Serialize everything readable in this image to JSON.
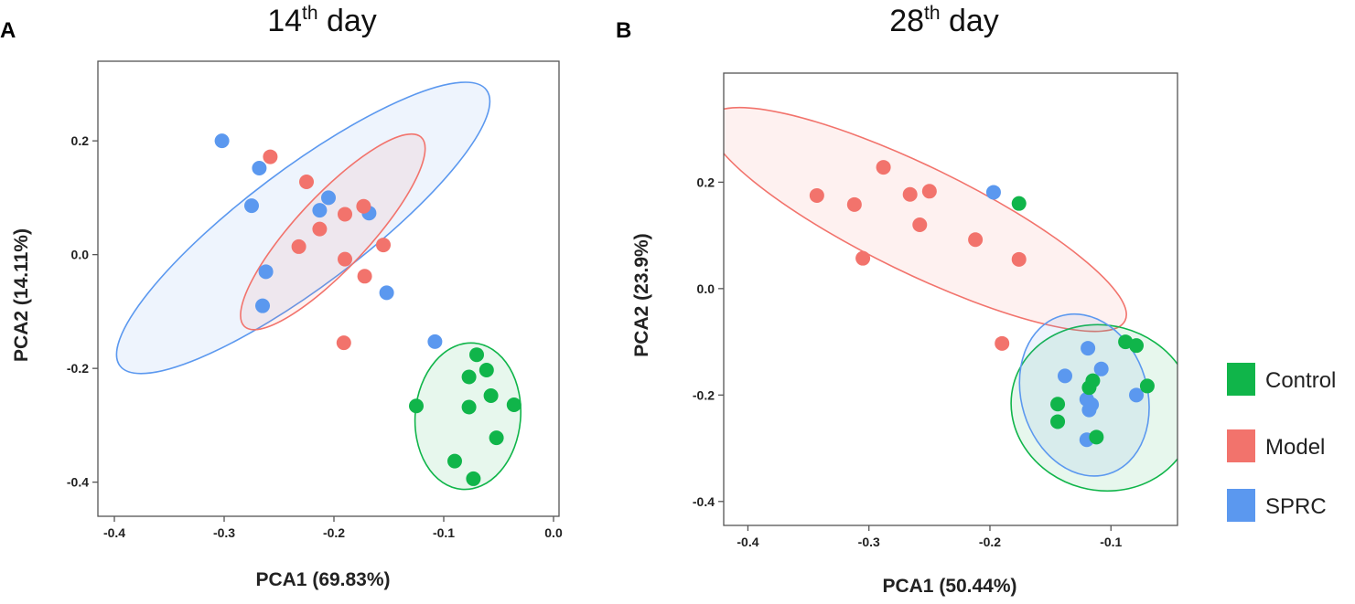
{
  "legend": [
    {
      "label": "Control",
      "color": "#10b54a"
    },
    {
      "label": "Model",
      "color": "#f2736c"
    },
    {
      "label": "SPRC",
      "color": "#5b98ef"
    }
  ],
  "chart_data": [
    {
      "type": "scatter",
      "panel_letter": "A",
      "title_main": "14",
      "title_sup": "th",
      "title_rest": " day",
      "xlabel": "PCA1 (69.83%)",
      "ylabel": "PCA2 (14.11%)",
      "xlim": [
        -0.415,
        0.005
      ],
      "ylim": [
        -0.46,
        0.34
      ],
      "xticks": [
        -0.4,
        -0.3,
        -0.2,
        -0.1,
        0.0
      ],
      "xtick_labels": [
        "-0.4",
        "-0.3",
        "-0.2",
        "-0.1",
        "0.0"
      ],
      "yticks": [
        0.2,
        0.0,
        -0.2,
        -0.4
      ],
      "ytick_labels": [
        "0.2",
        "0.0",
        "-0.2",
        "-0.4"
      ],
      "ellipses": [
        {
          "group": "SPRC",
          "center": [
            -0.228,
            0.047
          ],
          "rx": 0.209,
          "ry": 0.103,
          "angle": -37
        },
        {
          "group": "Model",
          "center": [
            -0.201,
            0.04
          ],
          "rx": 0.118,
          "ry": 0.064,
          "angle": -47
        },
        {
          "group": "Control",
          "center": [
            -0.078,
            -0.284
          ],
          "rx": 0.048,
          "ry": 0.129,
          "angle": 5
        }
      ],
      "series": [
        {
          "name": "SPRC",
          "points": [
            [
              -0.302,
              0.2
            ],
            [
              -0.268,
              0.152
            ],
            [
              -0.275,
              0.086
            ],
            [
              -0.262,
              -0.03
            ],
            [
              -0.265,
              -0.09
            ],
            [
              -0.205,
              0.1
            ],
            [
              -0.213,
              0.078
            ],
            [
              -0.168,
              0.073
            ],
            [
              -0.152,
              -0.067
            ],
            [
              -0.108,
              -0.153
            ]
          ]
        },
        {
          "name": "Model",
          "points": [
            [
              -0.258,
              0.172
            ],
            [
              -0.225,
              0.128
            ],
            [
              -0.173,
              0.085
            ],
            [
              -0.213,
              0.045
            ],
            [
              -0.19,
              0.071
            ],
            [
              -0.155,
              0.017
            ],
            [
              -0.232,
              0.014
            ],
            [
              -0.19,
              -0.008
            ],
            [
              -0.172,
              -0.038
            ],
            [
              -0.191,
              -0.155
            ]
          ]
        },
        {
          "name": "Control",
          "points": [
            [
              -0.07,
              -0.176
            ],
            [
              -0.061,
              -0.203
            ],
            [
              -0.077,
              -0.215
            ],
            [
              -0.125,
              -0.266
            ],
            [
              -0.077,
              -0.268
            ],
            [
              -0.057,
              -0.248
            ],
            [
              -0.036,
              -0.264
            ],
            [
              -0.052,
              -0.322
            ],
            [
              -0.09,
              -0.363
            ],
            [
              -0.073,
              -0.394
            ]
          ]
        }
      ]
    },
    {
      "type": "scatter",
      "panel_letter": "B",
      "title_main": "28",
      "title_sup": "th",
      "title_rest": " day",
      "xlabel": "PCA1 (50.44%)",
      "ylabel": "PCA2 (23.9%)",
      "xlim": [
        -0.42,
        -0.045
      ],
      "ylim": [
        -0.445,
        0.405
      ],
      "xticks": [
        -0.4,
        -0.3,
        -0.2,
        -0.1
      ],
      "xtick_labels": [
        "-0.4",
        "-0.3",
        "-0.2",
        "-0.1"
      ],
      "yticks": [
        0.2,
        0.0,
        -0.2,
        -0.4
      ],
      "ytick_labels": [
        "0.2",
        "0.0",
        "-0.2",
        "-0.4"
      ],
      "ellipses": [
        {
          "group": "Model",
          "center": [
            -0.26,
            0.13
          ],
          "rx": 0.191,
          "ry": 0.1,
          "angle": 26
        },
        {
          "group": "Control",
          "center": [
            -0.107,
            -0.224
          ],
          "rx": 0.076,
          "ry": 0.155,
          "angle": 15
        },
        {
          "group": "SPRC",
          "center": [
            -0.122,
            -0.2
          ],
          "rx": 0.052,
          "ry": 0.155,
          "angle": -17
        }
      ],
      "series": [
        {
          "name": "Model",
          "points": [
            [
              -0.343,
              0.175
            ],
            [
              -0.312,
              0.158
            ],
            [
              -0.288,
              0.228
            ],
            [
              -0.266,
              0.177
            ],
            [
              -0.25,
              0.183
            ],
            [
              -0.258,
              0.12
            ],
            [
              -0.212,
              0.092
            ],
            [
              -0.305,
              0.057
            ],
            [
              -0.176,
              0.055
            ],
            [
              -0.19,
              -0.103
            ]
          ]
        },
        {
          "name": "SPRC",
          "points": [
            [
              -0.197,
              0.181
            ],
            [
              -0.119,
              -0.112
            ],
            [
              -0.108,
              -0.151
            ],
            [
              -0.138,
              -0.164
            ],
            [
              -0.12,
              -0.208
            ],
            [
              -0.116,
              -0.218
            ],
            [
              -0.118,
              -0.228
            ],
            [
              -0.079,
              -0.2
            ],
            [
              -0.12,
              -0.284
            ]
          ]
        },
        {
          "name": "Control",
          "points": [
            [
              -0.176,
              0.16
            ],
            [
              -0.088,
              -0.1
            ],
            [
              -0.079,
              -0.107
            ],
            [
              -0.115,
              -0.173
            ],
            [
              -0.118,
              -0.186
            ],
            [
              -0.07,
              -0.183
            ],
            [
              -0.144,
              -0.217
            ],
            [
              -0.144,
              -0.25
            ],
            [
              -0.112,
              -0.279
            ]
          ]
        }
      ]
    }
  ]
}
